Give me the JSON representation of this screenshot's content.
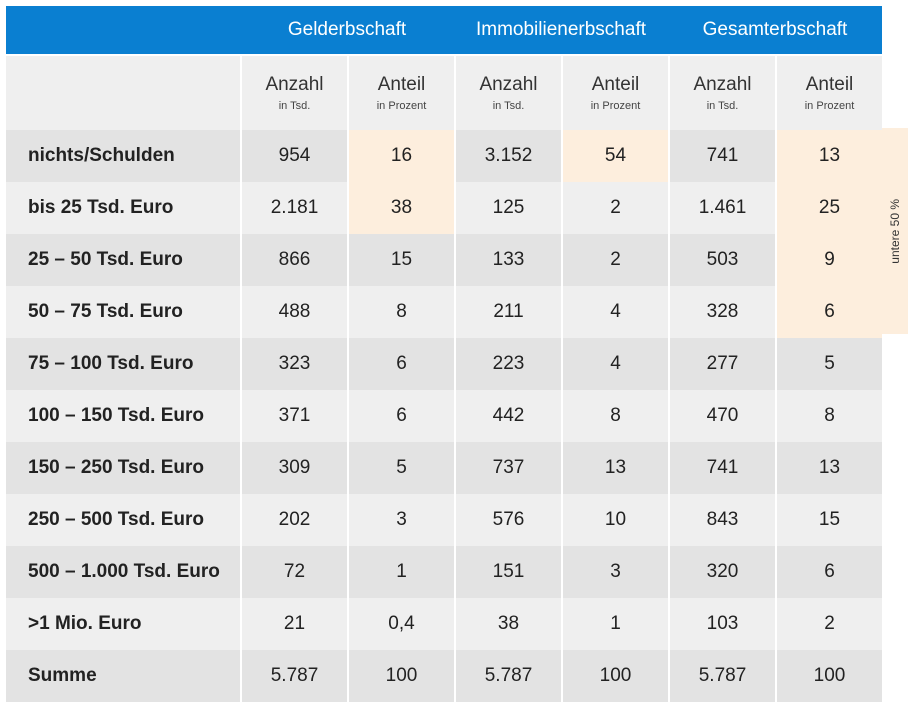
{
  "header": {
    "groups": [
      "Gelderbschaft",
      "Immobilienerbschaft",
      "Gesamterbschaft"
    ]
  },
  "subheader": {
    "columns": [
      {
        "main": "Anzahl",
        "unit": "in Tsd."
      },
      {
        "main": "Anteil",
        "unit": "in Prozent"
      },
      {
        "main": "Anzahl",
        "unit": "in Tsd."
      },
      {
        "main": "Anteil",
        "unit": "in Prozent"
      },
      {
        "main": "Anzahl",
        "unit": "in Tsd."
      },
      {
        "main": "Anteil",
        "unit": "in Prozent"
      }
    ]
  },
  "rows": [
    {
      "label": "nichts/Schulden",
      "values": [
        "954",
        "16",
        "3.152",
        "54",
        "741",
        "13"
      ],
      "highlight": [
        1,
        3,
        5
      ]
    },
    {
      "label": "bis 25 Tsd. Euro",
      "values": [
        "2.181",
        "38",
        "125",
        "2",
        "1.461",
        "25"
      ],
      "highlight": [
        1,
        5
      ]
    },
    {
      "label": "25 – 50 Tsd. Euro",
      "values": [
        "866",
        "15",
        "133",
        "2",
        "503",
        "9"
      ],
      "highlight": [
        5
      ]
    },
    {
      "label": "50 – 75 Tsd. Euro",
      "values": [
        "488",
        "8",
        "211",
        "4",
        "328",
        "6"
      ],
      "highlight": [
        5
      ]
    },
    {
      "label": "75 – 100 Tsd. Euro",
      "values": [
        "323",
        "6",
        "223",
        "4",
        "277",
        "5"
      ],
      "highlight": []
    },
    {
      "label": "100 – 150 Tsd. Euro",
      "values": [
        "371",
        "6",
        "442",
        "8",
        "470",
        "8"
      ],
      "highlight": []
    },
    {
      "label": "150 – 250 Tsd. Euro",
      "values": [
        "309",
        "5",
        "737",
        "13",
        "741",
        "13"
      ],
      "highlight": []
    },
    {
      "label": "250 – 500 Tsd. Euro",
      "values": [
        "202",
        "3",
        "576",
        "10",
        "843",
        "15"
      ],
      "highlight": []
    },
    {
      "label": "500 – 1.000 Tsd. Euro",
      "values": [
        "72",
        "1",
        "151",
        "3",
        "320",
        "6"
      ],
      "highlight": []
    },
    {
      "label": ">1 Mio. Euro",
      "values": [
        "21",
        "0,4",
        "38",
        "1",
        "103",
        "2"
      ],
      "highlight": []
    },
    {
      "label": "Summe",
      "values": [
        "5.787",
        "100",
        "5.787",
        "100",
        "5.787",
        "100"
      ],
      "highlight": []
    }
  ],
  "bracket_label": "untere 50 %",
  "colors": {
    "header_bg": "#0a7fd1",
    "highlight": "#fdeedd",
    "row_dark": "#e3e3e3",
    "row_light": "#efefef"
  }
}
